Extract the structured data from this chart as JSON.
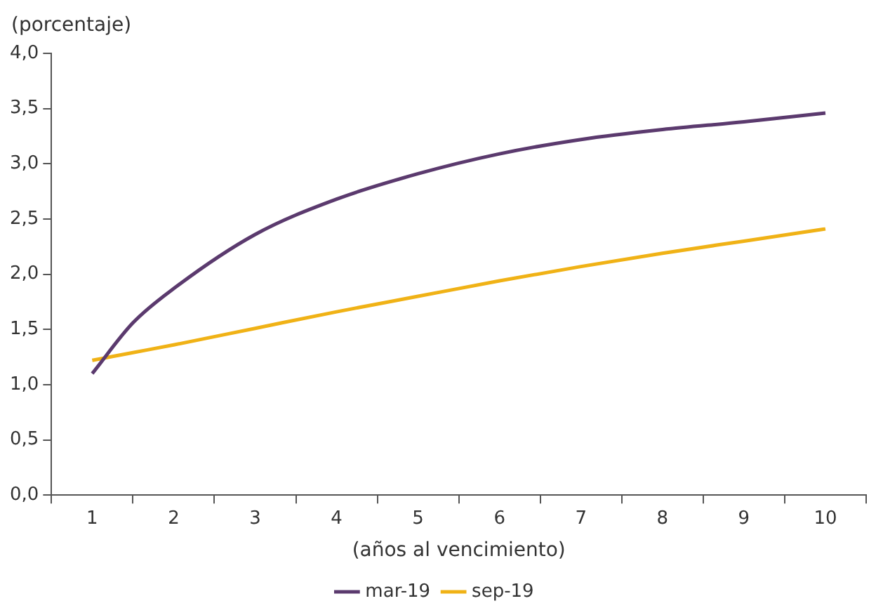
{
  "chart_data": {
    "type": "line",
    "ylabel": "(porcentaje)",
    "xlabel": "(años al vencimiento)",
    "x": [
      1,
      1.5,
      2,
      3,
      4,
      5,
      6,
      7,
      8,
      9,
      10
    ],
    "series": [
      {
        "name": "mar-19",
        "color": "#5b3a6e",
        "values": [
          1.1,
          1.56,
          1.87,
          2.36,
          2.68,
          2.91,
          3.09,
          3.22,
          3.31,
          3.38,
          3.46
        ]
      },
      {
        "name": "sep-19",
        "color": "#f0b216",
        "values": [
          1.22,
          1.29,
          1.36,
          1.51,
          1.66,
          1.8,
          1.94,
          2.07,
          2.19,
          2.3,
          2.41
        ]
      }
    ],
    "xlim": [
      0.5,
      10.5
    ],
    "xticks": [
      {
        "value": 0.5,
        "label": null
      },
      1,
      {
        "value": 1.5,
        "label": null
      },
      2,
      {
        "value": 2.5,
        "label": null
      },
      3,
      {
        "value": 3.5,
        "label": null
      },
      4,
      {
        "value": 4.5,
        "label": null
      },
      5,
      {
        "value": 5.5,
        "label": null
      },
      6,
      {
        "value": 6.5,
        "label": null
      },
      7,
      {
        "value": 7.5,
        "label": null
      },
      8,
      {
        "value": 8.5,
        "label": null
      },
      9,
      {
        "value": 9.5,
        "label": null
      },
      10,
      {
        "value": 10.5,
        "label": null
      }
    ],
    "ylim": [
      0,
      4
    ],
    "yticks": [
      {
        "value": 0,
        "label": "0,0"
      },
      {
        "value": 0.5,
        "label": "0,5"
      },
      {
        "value": 1,
        "label": "1,0"
      },
      {
        "value": 1.5,
        "label": "1,5"
      },
      {
        "value": 2,
        "label": "2,0"
      },
      {
        "value": 2.5,
        "label": "2,5"
      },
      {
        "value": 3,
        "label": "3,0"
      },
      {
        "value": 3.5,
        "label": "3,5"
      },
      {
        "value": 4,
        "label": "4,0"
      }
    ],
    "grid": false,
    "legend": "bottom",
    "marker": "none",
    "line_style": "solid"
  }
}
